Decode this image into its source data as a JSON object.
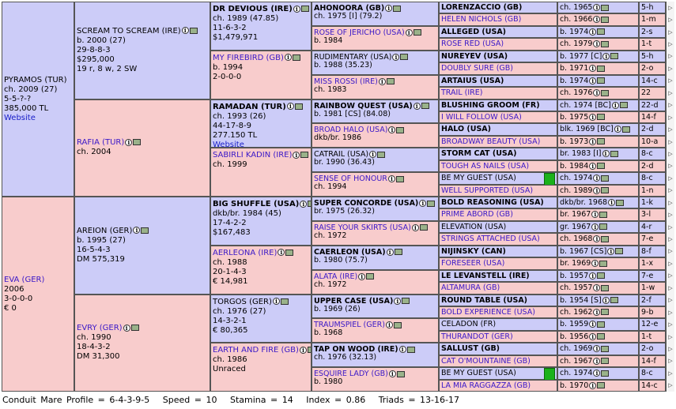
{
  "gen1": [
    {
      "name": "PYRAMOS (TUR)",
      "lines": [
        "ch. 2009 (27)",
        "5-5-?-?",
        "385,000 TL"
      ],
      "link": "Website",
      "sex": "m"
    },
    {
      "name": "EVA (GER)",
      "lines": [
        "2006",
        "3-0-0-0",
        "€ 0"
      ],
      "sex": "f"
    }
  ],
  "gen2": [
    {
      "name": "SCREAM TO SCREAM (IRE)",
      "lines": [
        "b. 2000 (27)",
        "29-8-8-3",
        "$295,000",
        "19 r, 8 w, 2 SW"
      ],
      "sex": "m"
    },
    {
      "name": "RAFIA (TUR)",
      "lines": [
        "ch. 2004"
      ],
      "sex": "f"
    },
    {
      "name": "AREION (GER)",
      "lines": [
        "b. 1995 (27)",
        "16-5-4-3",
        "DM 575,319"
      ],
      "sex": "m"
    },
    {
      "name": "EVRY (GER)",
      "lines": [
        "ch. 1990",
        "18-4-3-2",
        "DM 31,300"
      ],
      "sex": "f"
    }
  ],
  "gen3": [
    {
      "name": "DR DEVIOUS (IRE)",
      "lines": [
        "ch. 1989 (47.85)",
        "11-6-3-2",
        "$1,479,971"
      ],
      "sex": "m",
      "bold": true
    },
    {
      "name": "MY FIREBIRD (GB)",
      "lines": [
        "b. 1994",
        "2-0-0-0"
      ],
      "sex": "f"
    },
    {
      "name": "RAMADAN (TUR)",
      "lines": [
        "ch. 1993 (26)",
        "44-17-8-9",
        "277.150 TL"
      ],
      "link": "Website",
      "sex": "m",
      "bold": true
    },
    {
      "name": "SABIRLI KADIN (IRE)",
      "lines": [
        "ch. 1999"
      ],
      "sex": "f"
    },
    {
      "name": "BIG SHUFFLE (USA)",
      "lines": [
        "dkb/br. 1984 (45)",
        "17-4-2-2",
        "$167,483"
      ],
      "sex": "m",
      "bold": true
    },
    {
      "name": "AERLEONA (IRE)",
      "lines": [
        "ch. 1988",
        "20-1-4-3",
        "€ 14,981"
      ],
      "sex": "f"
    },
    {
      "name": "TORGOS (GER)",
      "lines": [
        "ch. 1976 (27)",
        "14-3-2-1",
        "€ 80,365"
      ],
      "sex": "m"
    },
    {
      "name": "EARTH AND FIRE (GB)",
      "lines": [
        "ch. 1986",
        "Unraced"
      ],
      "sex": "f"
    }
  ],
  "gen4": [
    {
      "name": "AHONOORA (GB)",
      "info": "ch. 1975 [I] (79.2)",
      "sex": "m",
      "bold": true
    },
    {
      "name": "ROSE OF JERICHO (USA)",
      "info": "b. 1984",
      "sex": "f"
    },
    {
      "name": "RUDIMENTARY (USA)",
      "info": "b. 1988 (35.23)",
      "sex": "m"
    },
    {
      "name": "MISS ROSSI (IRE)",
      "info": "ch. 1983",
      "sex": "f"
    },
    {
      "name": "RAINBOW QUEST (USA)",
      "info": "b. 1981 [CS] (84.08)",
      "sex": "m",
      "bold": true
    },
    {
      "name": "BROAD HALO (USA)",
      "info": "dkb/br. 1986",
      "sex": "f"
    },
    {
      "name": "CATRAIL (USA)",
      "info": "br. 1990 (36.43)",
      "sex": "m"
    },
    {
      "name": "SENSE OF HONOUR",
      "info": "ch. 1994",
      "sex": "f"
    },
    {
      "name": "SUPER CONCORDE (USA)",
      "info": "br. 1975 (26.32)",
      "sex": "m",
      "bold": true
    },
    {
      "name": "RAISE YOUR SKIRTS (USA)",
      "info": "ch. 1972",
      "sex": "f"
    },
    {
      "name": "CAERLEON (USA)",
      "info": "b. 1980 (75.7)",
      "sex": "m",
      "bold": true
    },
    {
      "name": "ALATA (IRE)",
      "info": "ch. 1972",
      "sex": "f"
    },
    {
      "name": "UPPER CASE (USA)",
      "info": "b. 1969 (26)",
      "sex": "m",
      "bold": true
    },
    {
      "name": "TRAUMSPIEL (GER)",
      "info": "b. 1968",
      "sex": "f"
    },
    {
      "name": "TAP ON WOOD (IRE)",
      "info": "ch. 1976 (32.13)",
      "sex": "m",
      "bold": true
    },
    {
      "name": "ESQUIRE LADY (GB)",
      "info": "b. 1980",
      "sex": "f"
    }
  ],
  "gen5": [
    {
      "name": "LORENZACCIO (GB)",
      "info": "ch. 1965",
      "ext": "5-h",
      "sex": "m",
      "bold": true
    },
    {
      "name": "HELEN NICHOLS (GB)",
      "info": "ch. 1966",
      "ext": "1-m",
      "sex": "f"
    },
    {
      "name": "ALLEGED (USA)",
      "info": "b. 1974",
      "ext": "2-s",
      "sex": "m",
      "bold": true
    },
    {
      "name": "ROSE RED (USA)",
      "info": "ch. 1979",
      "ext": "1-t",
      "sex": "f"
    },
    {
      "name": "NUREYEV (USA)",
      "info": "b. 1977 [C]",
      "ext": "5-h",
      "sex": "m",
      "bold": true
    },
    {
      "name": "DOUBLY SURE (GB)",
      "info": "b. 1971",
      "ext": "2-o",
      "sex": "f"
    },
    {
      "name": "ARTAIUS (USA)",
      "info": "b. 1974",
      "ext": "14-c",
      "sex": "m",
      "bold": true
    },
    {
      "name": "TRAIL (IRE)",
      "info": "ch. 1976",
      "ext": "22",
      "sex": "f"
    },
    {
      "name": "BLUSHING GROOM (FR)",
      "info": "ch. 1974 [BC]",
      "ext": "22-d",
      "sex": "m",
      "bold": true
    },
    {
      "name": "I WILL FOLLOW (USA)",
      "info": "b. 1975",
      "ext": "14-f",
      "sex": "f"
    },
    {
      "name": "HALO (USA)",
      "info": "blk. 1969 [BC]",
      "ext": "2-d",
      "sex": "m",
      "bold": true
    },
    {
      "name": "BROADWAY BEAUTY (USA)",
      "info": "b. 1973",
      "ext": "10-a",
      "sex": "f"
    },
    {
      "name": "STORM CAT (USA)",
      "info": "br. 1983 [I]",
      "ext": "8-c",
      "sex": "m",
      "bold": true
    },
    {
      "name": "TOUGH AS NAILS (USA)",
      "info": "b. 1984",
      "ext": "2-d",
      "sex": "f"
    },
    {
      "name": "BE MY GUEST (USA)",
      "info": "ch. 1974",
      "ext": "8-c",
      "sex": "m",
      "bar": true
    },
    {
      "name": "WELL SUPPORTED (USA)",
      "info": "ch. 1989",
      "ext": "1-n",
      "sex": "f"
    },
    {
      "name": "BOLD REASONING (USA)",
      "info": "dkb/br. 1968",
      "ext": "1-k",
      "sex": "m",
      "bold": true
    },
    {
      "name": "PRIME ABORD (GB)",
      "info": "br. 1967",
      "ext": "3-l",
      "sex": "f"
    },
    {
      "name": "ELEVATION (USA)",
      "info": "gr. 1967",
      "ext": "4-r",
      "sex": "m"
    },
    {
      "name": "STRINGS ATTACHED (USA)",
      "info": "ch. 1968",
      "ext": "7-e",
      "sex": "f"
    },
    {
      "name": "NIJINSKY (CAN)",
      "info": "b. 1967 [CS]",
      "ext": "8-f",
      "sex": "m",
      "bold": true
    },
    {
      "name": "FORESEER (USA)",
      "info": "br. 1969",
      "ext": "1-x",
      "sex": "f"
    },
    {
      "name": "LE LEVANSTELL (IRE)",
      "info": "b. 1957",
      "ext": "7-e",
      "sex": "m",
      "bold": true
    },
    {
      "name": "ALTAMURA (GB)",
      "info": "ch. 1957",
      "ext": "1-w",
      "sex": "f"
    },
    {
      "name": "ROUND TABLE (USA)",
      "info": "b. 1954 [S]",
      "ext": "2-f",
      "sex": "m",
      "bold": true
    },
    {
      "name": "BOLD EXPERIENCE (USA)",
      "info": "ch. 1962",
      "ext": "9-b",
      "sex": "f"
    },
    {
      "name": "CELADON (FR)",
      "info": "b. 1959",
      "ext": "12-e",
      "sex": "m"
    },
    {
      "name": "THURANDOT (GER)",
      "info": "b. 1956",
      "ext": "1-t",
      "sex": "f"
    },
    {
      "name": "SALLUST (GB)",
      "info": "ch. 1969",
      "ext": "2-o",
      "sex": "m",
      "bold": true
    },
    {
      "name": "CAT O'MOUNTAINE (GB)",
      "info": "ch. 1967",
      "ext": "14-f",
      "sex": "f"
    },
    {
      "name": "BE MY GUEST (USA)",
      "info": "ch. 1974",
      "ext": "8-c",
      "sex": "m",
      "bar": true
    },
    {
      "name": "LA MIA RAGGAZZA (GB)",
      "info": "b. 1970",
      "ext": "14-c",
      "sex": "f"
    }
  ],
  "footer": {
    "profile": "Conduit Mare Profile = 6-4-3-9-5",
    "speed": "Speed = 10",
    "stamina": "Stamina = 14",
    "index": "Index = 0.86",
    "triads": "Triads = 13-16-17"
  },
  "colors": {
    "male": "#ccccf8",
    "female": "#f8cccc",
    "link": "#3a18c8",
    "bar": "#1bb11b"
  }
}
